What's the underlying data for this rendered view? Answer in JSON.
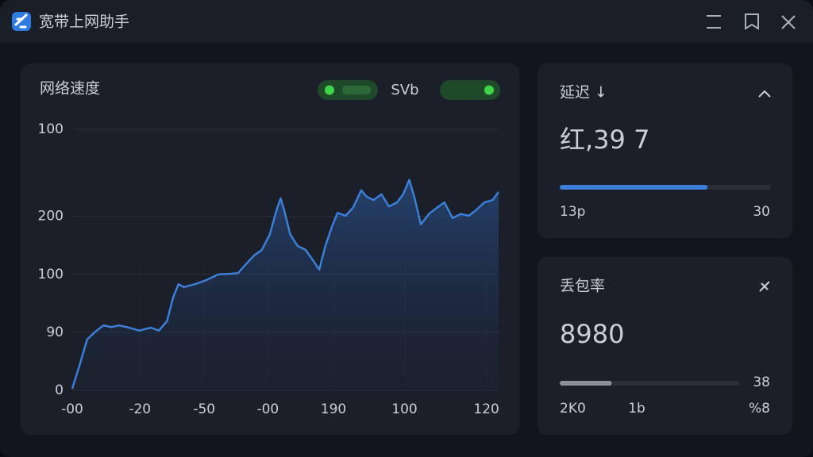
{
  "window": {
    "title": "宽带上网助手"
  },
  "chart_data": {
    "type": "line",
    "title": "网络速度",
    "toggle_label": "SVb",
    "x": [
      0,
      0.11,
      0.22,
      0.34,
      0.46,
      0.58,
      0.69,
      0.81,
      0.99,
      1.16,
      1.28,
      1.4,
      1.49,
      1.57,
      1.65,
      1.81,
      1.98,
      2.16,
      2.34,
      2.45,
      2.57,
      2.69,
      2.8,
      2.92,
      3.02,
      3.08,
      3.13,
      3.22,
      3.33,
      3.45,
      3.57,
      3.65,
      3.74,
      3.84,
      3.92,
      4.04,
      4.15,
      4.27,
      4.35,
      4.45,
      4.57,
      4.68,
      4.8,
      4.89,
      4.98,
      5.06,
      5.15,
      5.27,
      5.39,
      5.5,
      5.62,
      5.74,
      5.86,
      5.97,
      6.09,
      6.21,
      6.3
    ],
    "series": [
      {
        "color": "#3b7fd8",
        "values": [
          0.03,
          0.44,
          0.88,
          1.01,
          1.12,
          1.09,
          1.12,
          1.09,
          1.03,
          1.08,
          1.03,
          1.19,
          1.6,
          1.83,
          1.78,
          1.83,
          1.9,
          2.0,
          2.01,
          2.02,
          2.18,
          2.33,
          2.42,
          2.69,
          3.11,
          3.31,
          3.11,
          2.69,
          2.49,
          2.42,
          2.22,
          2.08,
          2.49,
          2.83,
          3.06,
          3.01,
          3.15,
          3.45,
          3.34,
          3.28,
          3.38,
          3.17,
          3.24,
          3.38,
          3.63,
          3.31,
          2.86,
          3.04,
          3.15,
          3.24,
          2.97,
          3.04,
          3.01,
          3.11,
          3.24,
          3.28,
          3.42
        ]
      }
    ],
    "xlim": [
      0,
      6.3
    ],
    "ylim": [
      0,
      4.5
    ],
    "xticks": [
      {
        "value": 0,
        "label": "-00"
      },
      {
        "value": 1,
        "label": "-20"
      },
      {
        "value": 1.95,
        "label": "-50"
      },
      {
        "value": 2.89,
        "label": "-00"
      },
      {
        "value": 3.86,
        "label": "190"
      },
      {
        "value": 4.91,
        "label": "100"
      },
      {
        "value": 6.12,
        "label": "120"
      }
    ],
    "yticks": [
      0,
      {
        "value": 1,
        "label": "90"
      },
      {
        "value": 2,
        "label": "100"
      },
      {
        "value": 3,
        "label": "200"
      },
      {
        "value": 4.5,
        "label": "100"
      }
    ],
    "grid": true
  },
  "latency": {
    "title": "延迟 ↓",
    "value": "红,39 7",
    "progress": 70,
    "left_label": "13p",
    "right_label": "30"
  },
  "packet_loss": {
    "title": "丢包率",
    "value": "8980",
    "progress": 29,
    "bar_label": "38",
    "labels": [
      "2K0",
      "1b",
      "%8"
    ]
  }
}
